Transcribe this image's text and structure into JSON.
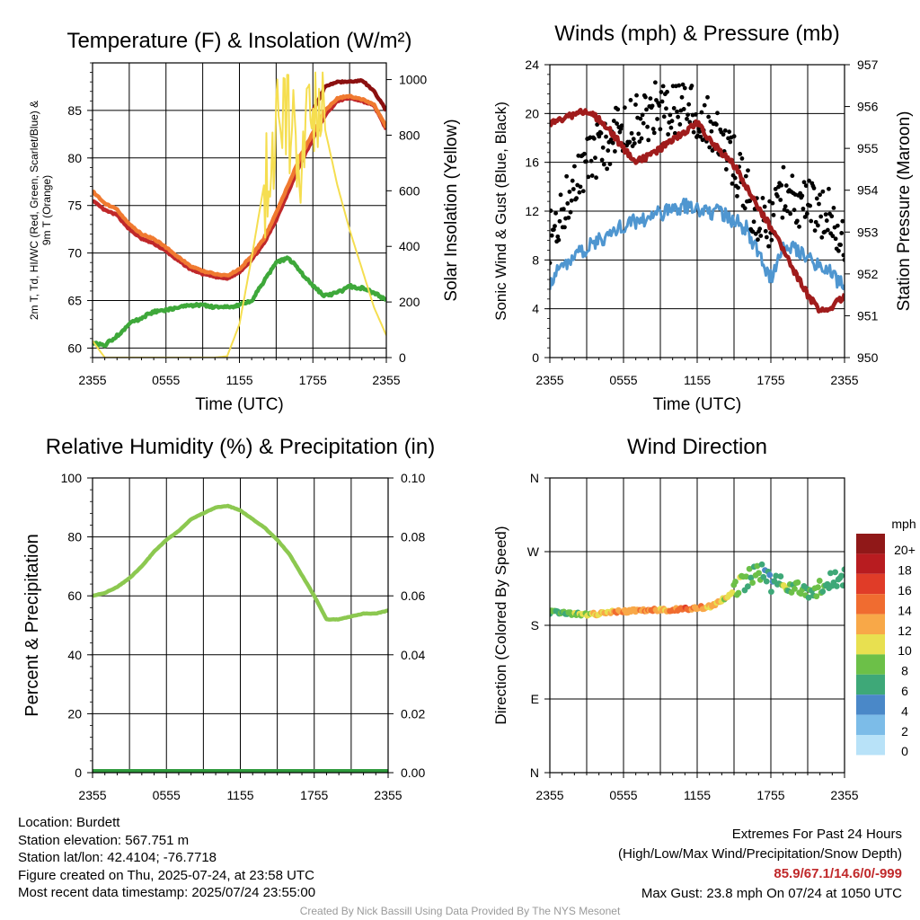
{
  "chart_data": [
    {
      "type": "line",
      "title": "Temperature (F) & Insolation (W/m²)",
      "xlabel": "Time (UTC)",
      "ylabel": "2m T, Td, HI/WC (Red, Green, Scarlet/Blue) & 9m T (Orange)",
      "y2label": "Solar Insolation (Yellow)",
      "x_ticks": [
        "2355",
        "0555",
        "1155",
        "1755",
        "2355"
      ],
      "ylim": [
        59,
        90
      ],
      "y_ticks": [
        60,
        65,
        70,
        75,
        80,
        85
      ],
      "y2lim": [
        0,
        1060
      ],
      "y2_ticks": [
        0,
        200,
        400,
        600,
        800,
        1000
      ],
      "x_hours": [
        0,
        1,
        2,
        3,
        4,
        5,
        6,
        7,
        8,
        9,
        10,
        11,
        12,
        13,
        14,
        15,
        16,
        17,
        18,
        19,
        20,
        21,
        22,
        23,
        24
      ],
      "series": [
        {
          "name": "2m T",
          "color": "#c0282a",
          "axis": "left",
          "values": [
            75.5,
            74.5,
            74.0,
            72.5,
            71.5,
            71.0,
            70.2,
            69.2,
            68.3,
            67.8,
            67.5,
            67.3,
            68.0,
            69.3,
            71.0,
            73.5,
            76.5,
            79.5,
            82.0,
            84.5,
            86.0,
            86.3,
            86.0,
            85.5,
            83.0
          ]
        },
        {
          "name": "9m T",
          "color": "#f07a30",
          "axis": "left",
          "values": [
            76.5,
            75.2,
            74.6,
            73.0,
            72.0,
            71.5,
            70.6,
            69.6,
            68.6,
            68.1,
            67.8,
            67.6,
            68.3,
            69.7,
            71.5,
            74.2,
            77.2,
            80.2,
            82.6,
            85.0,
            86.3,
            86.5,
            86.2,
            85.6,
            83.2
          ]
        },
        {
          "name": "HI/WC",
          "color": "#8b1010",
          "axis": "left",
          "values": [
            null,
            null,
            null,
            null,
            null,
            null,
            null,
            null,
            null,
            null,
            null,
            null,
            null,
            null,
            null,
            null,
            null,
            null,
            85.0,
            87.5,
            88.0,
            88.0,
            88.2,
            87.0,
            85.0
          ]
        },
        {
          "name": "2m Td",
          "color": "#3ea83a",
          "axis": "left",
          "values": [
            60.5,
            60.3,
            61.3,
            62.5,
            63.2,
            63.8,
            64.0,
            64.3,
            64.5,
            64.5,
            64.3,
            64.3,
            64.5,
            65.0,
            67.0,
            69.0,
            69.5,
            68.0,
            66.5,
            65.5,
            65.8,
            66.5,
            66.3,
            65.8,
            65.0
          ]
        },
        {
          "name": "Solar Insolation",
          "color": "#f5de50",
          "axis": "right",
          "values": [
            60,
            0,
            0,
            0,
            0,
            0,
            0,
            0,
            0,
            0,
            0,
            5,
            120,
            360,
            620,
            820,
            860,
            600,
            960,
            820,
            620,
            460,
            320,
            180,
            80
          ]
        }
      ]
    },
    {
      "type": "line",
      "title": "Winds (mph) & Pressure (mb)",
      "xlabel": "Time (UTC)",
      "ylabel": "Sonic Wind & Gust (Blue, Black)",
      "y2label": "Station Pressure (Maroon)",
      "x_ticks": [
        "2355",
        "0555",
        "1155",
        "1755",
        "2355"
      ],
      "ylim": [
        0,
        24
      ],
      "y_ticks": [
        0,
        4,
        8,
        12,
        16,
        20,
        24
      ],
      "y2lim": [
        950,
        957
      ],
      "y2_ticks": [
        950,
        951,
        952,
        953,
        954,
        955,
        956,
        957
      ],
      "x_hours": [
        0,
        1,
        2,
        3,
        4,
        5,
        6,
        7,
        8,
        9,
        10,
        11,
        12,
        13,
        14,
        15,
        16,
        17,
        18,
        19,
        20,
        21,
        22,
        23,
        24
      ],
      "series": [
        {
          "name": "Sonic Wind",
          "color": "#4f96d0",
          "axis": "left",
          "values": [
            6.2,
            7.5,
            8.3,
            9.0,
            9.6,
            10.2,
            10.8,
            11.2,
            11.5,
            11.8,
            12.2,
            12.4,
            12.2,
            12.0,
            11.8,
            11.2,
            10.6,
            8.5,
            6.5,
            9.5,
            9.0,
            8.3,
            7.5,
            6.8,
            5.8
          ]
        },
        {
          "name": "Gust",
          "color": "#000000",
          "axis": "left",
          "style": "scatter",
          "values": [
            10.0,
            12.0,
            14.5,
            16.0,
            17.0,
            18.0,
            18.8,
            19.5,
            20.0,
            20.5,
            20.5,
            20.5,
            19.8,
            19.0,
            18.0,
            16.0,
            13.5,
            11.5,
            11.0,
            13.5,
            13.0,
            12.8,
            12.2,
            11.5,
            9.5
          ]
        },
        {
          "name": "Station Pressure",
          "color": "#a01c1c",
          "axis": "right",
          "values": [
            955.6,
            955.7,
            955.8,
            955.9,
            955.7,
            955.4,
            955.0,
            954.7,
            954.8,
            955.0,
            955.2,
            955.4,
            955.6,
            955.2,
            954.9,
            954.6,
            954.1,
            953.6,
            953.1,
            952.6,
            952.0,
            951.5,
            951.1,
            951.2,
            951.5
          ]
        }
      ]
    },
    {
      "type": "line",
      "title": "Relative Humidity (%) & Precipitation (in)",
      "ylabel": "Percent & Precipitation",
      "x_ticks": [
        "2355",
        "0555",
        "1155",
        "1755",
        "2355"
      ],
      "ylim": [
        0,
        100
      ],
      "y_ticks": [
        0,
        20,
        40,
        60,
        80,
        100
      ],
      "y2lim": [
        0,
        0.1
      ],
      "y2_ticks": [
        "0.00",
        "0.02",
        "0.04",
        "0.06",
        "0.08",
        "0.10"
      ],
      "x_hours": [
        0,
        1,
        2,
        3,
        4,
        5,
        6,
        7,
        8,
        9,
        10,
        11,
        12,
        13,
        14,
        15,
        16,
        17,
        18,
        19,
        20,
        21,
        22,
        23,
        24
      ],
      "series": [
        {
          "name": "Relative Humidity",
          "color": "#8cc850",
          "axis": "left",
          "values": [
            60,
            61,
            63,
            66,
            70,
            75,
            79,
            82,
            86,
            88,
            90,
            90.5,
            89,
            86,
            83,
            79,
            74,
            67,
            60,
            52,
            52,
            53,
            54,
            54,
            55
          ]
        },
        {
          "name": "Precipitation",
          "color": "#2e9a3c",
          "axis": "right",
          "values": [
            0,
            0,
            0,
            0,
            0,
            0,
            0,
            0,
            0,
            0,
            0,
            0,
            0,
            0,
            0,
            0,
            0,
            0,
            0,
            0,
            0,
            0,
            0,
            0,
            0
          ]
        }
      ]
    },
    {
      "type": "scatter",
      "title": "Wind Direction",
      "ylabel": "Direction (Colored By Speed)",
      "x_ticks": [
        "2355",
        "0555",
        "1155",
        "1755",
        "2355"
      ],
      "y_ticks": [
        "N",
        "E",
        "S",
        "W",
        "N"
      ],
      "ylim": [
        0,
        360
      ],
      "colorbar": {
        "unit": "mph",
        "labels": [
          "0",
          "2",
          "4",
          "6",
          "8",
          "10",
          "12",
          "14",
          "16",
          "18",
          "20+"
        ],
        "colors": [
          "#b8e2f8",
          "#7cbce8",
          "#4a88c8",
          "#3ea878",
          "#6cc048",
          "#e8e050",
          "#f8a848",
          "#f06c30",
          "#e03c28",
          "#b81c20",
          "#901818"
        ]
      },
      "x_hours": [
        0,
        1,
        2,
        3,
        4,
        5,
        6,
        7,
        8,
        9,
        10,
        11,
        12,
        13,
        14,
        15,
        16,
        17,
        18,
        19,
        20,
        21,
        22,
        23,
        24
      ],
      "direction_deg": [
        196,
        196,
        194,
        193,
        194,
        196,
        197,
        198,
        199,
        199,
        199,
        200,
        201,
        203,
        210,
        222,
        235,
        248,
        232,
        228,
        224,
        222,
        226,
        234,
        240
      ],
      "speed_mph": [
        6,
        7,
        8,
        9,
        11,
        12,
        13,
        12,
        13,
        12,
        13,
        14,
        12,
        11,
        10,
        9,
        8,
        7,
        5,
        8,
        8,
        7,
        7,
        6,
        5
      ]
    }
  ],
  "info": {
    "location": "Location: Burdett",
    "elevation": "Station elevation: 567.751 m",
    "latlon": "Station lat/lon: 42.4104; -76.7718",
    "created": "Figure created on Thu, 2025-07-24, at 23:58 UTC",
    "recent": "Most recent data timestamp: 2025/07/24 23:55:00"
  },
  "extremes": {
    "title": "Extremes For Past 24 Hours",
    "subtitle": "(High/Low/Max Wind/Precipitation/Snow Depth)",
    "values": "85.9/67.1/14.6/0/-999",
    "gust": "Max Gust: 23.8 mph On 07/24 at 1050 UTC"
  },
  "credit": "Created By Nick Bassill Using Data Provided By The NYS Mesonet"
}
